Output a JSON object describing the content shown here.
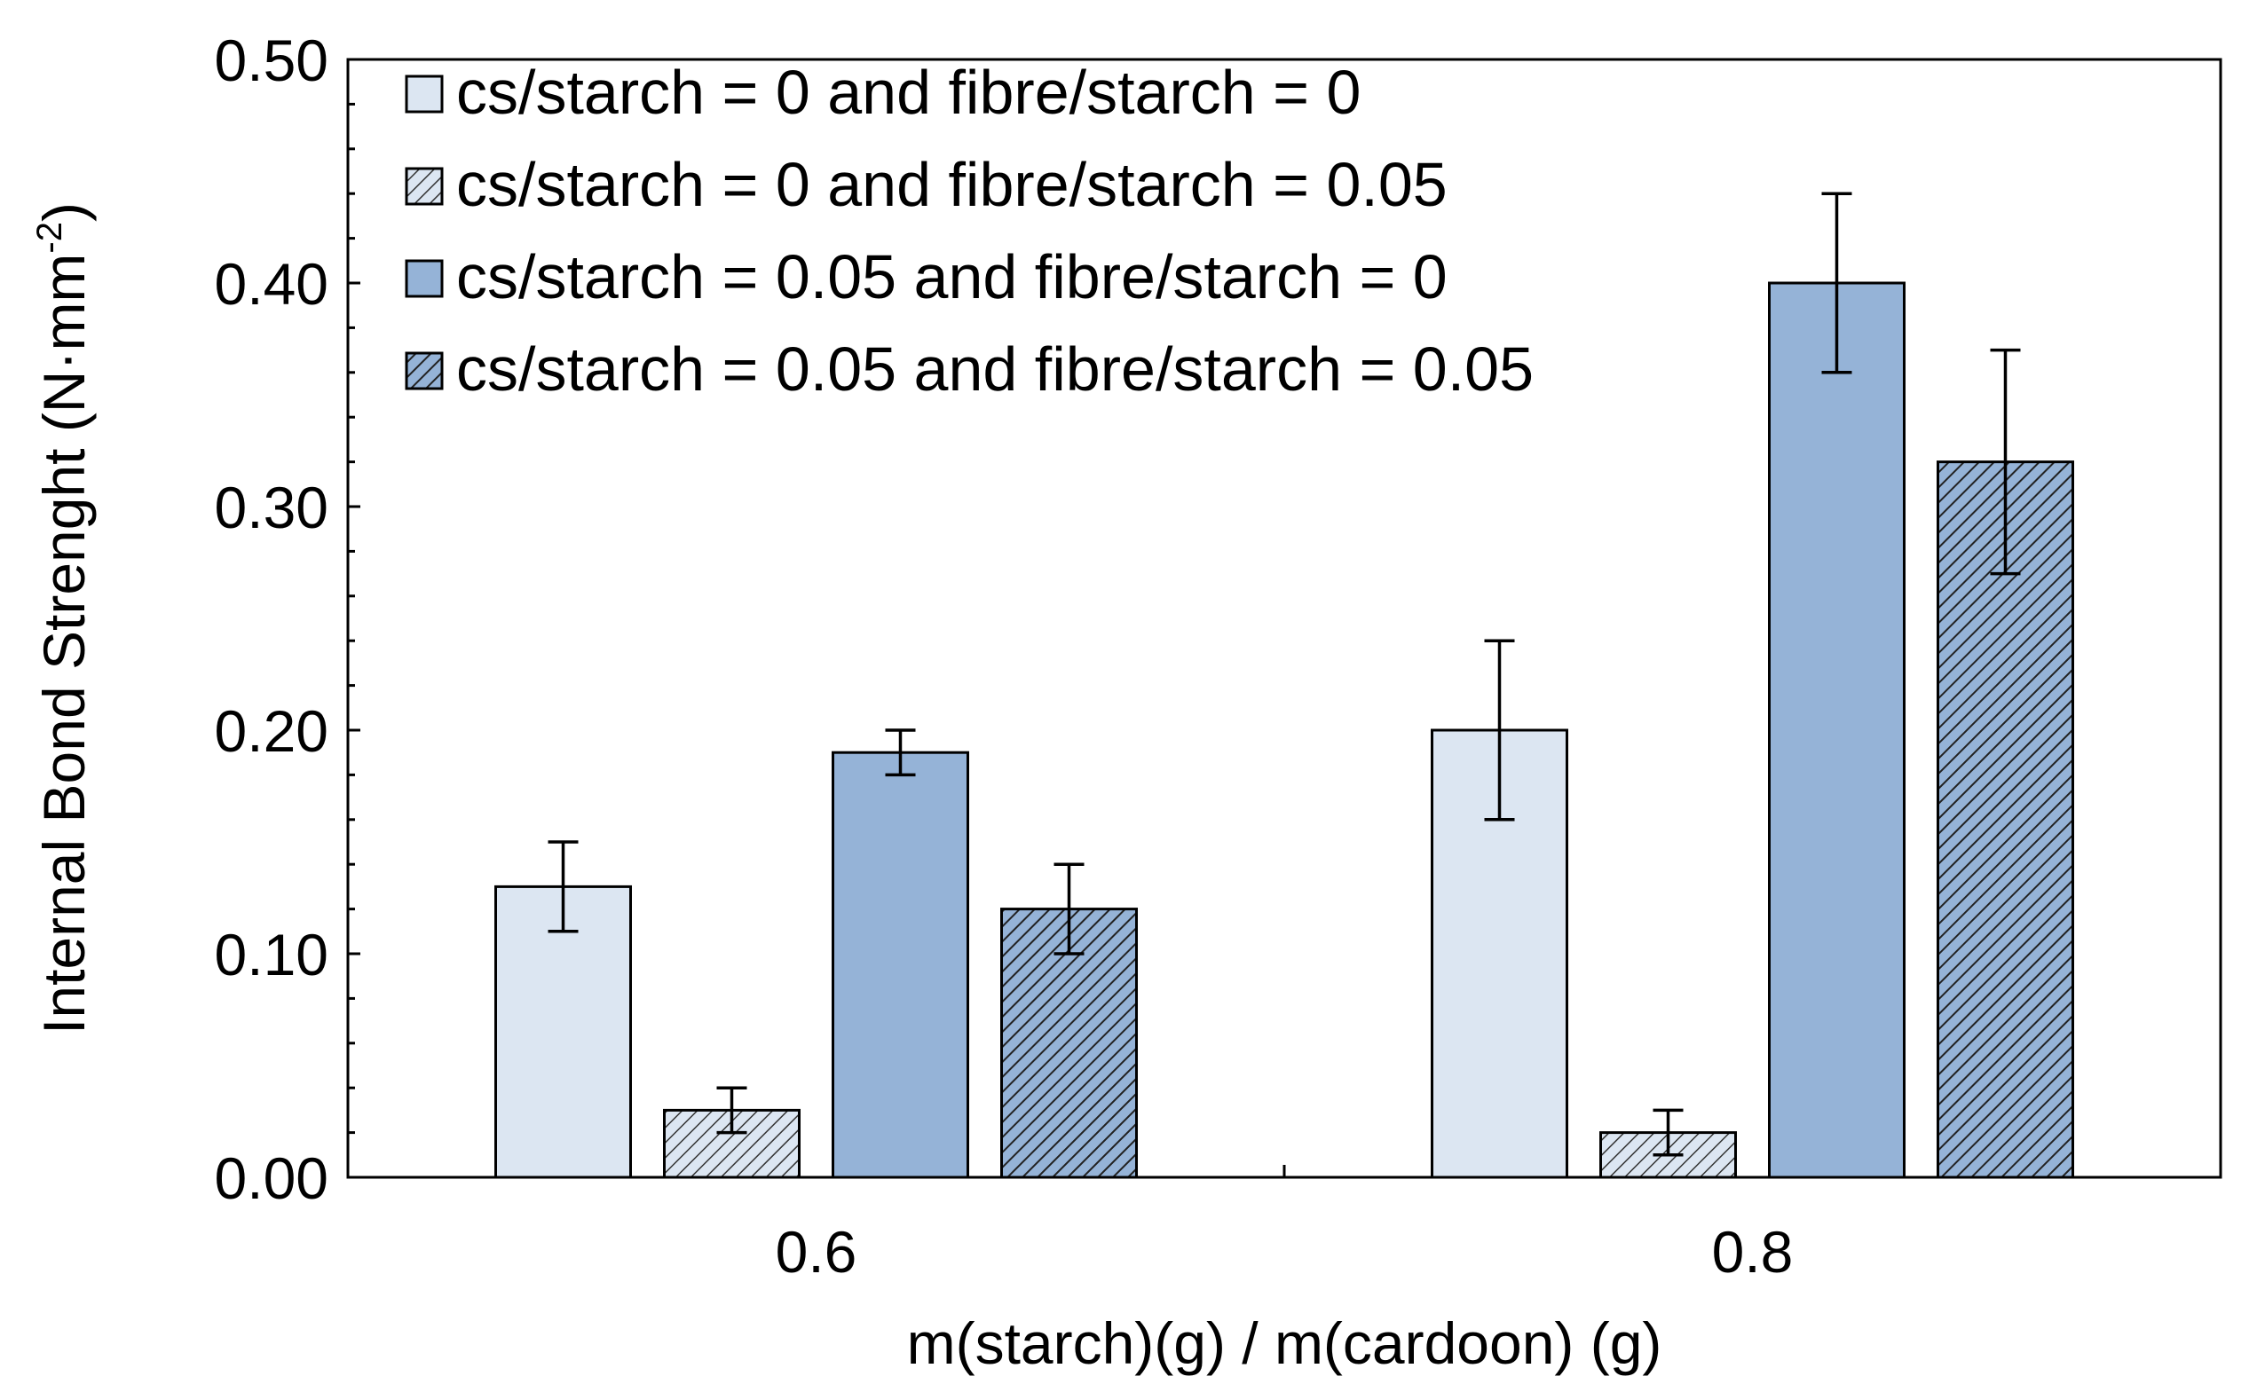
{
  "chart_data": {
    "type": "bar",
    "ylabel_main": "Internal Bond Strenght (N·mm",
    "ylabel_sup": "-2",
    "ylabel_close": ")",
    "xlabel": "m(starch)(g) / m(cardoon) (g)",
    "categories": [
      "0.6",
      "0.8"
    ],
    "ylim": [
      0,
      0.5
    ],
    "yticks": [
      "0.00",
      "0.10",
      "0.20",
      "0.30",
      "0.40",
      "0.50"
    ],
    "series": [
      {
        "name": "cs/starch = 0 and fibre/starch = 0",
        "values": [
          0.13,
          0.2
        ],
        "errors": [
          0.02,
          0.04
        ],
        "color": "#dce6f2",
        "pattern": "solid"
      },
      {
        "name": "cs/starch = 0 and fibre/starch = 0.05",
        "values": [
          0.03,
          0.02
        ],
        "errors": [
          0.01,
          0.01
        ],
        "color": "#dce6f2",
        "pattern": "hatch"
      },
      {
        "name": "cs/starch = 0.05 and fibre/starch = 0",
        "values": [
          0.19,
          0.4
        ],
        "errors": [
          0.01,
          0.04
        ],
        "color": "#95b3d7",
        "pattern": "solid"
      },
      {
        "name": "cs/starch = 0.05 and fibre/starch = 0.05",
        "values": [
          0.12,
          0.32
        ],
        "errors": [
          0.02,
          0.05
        ],
        "color": "#95b3d7",
        "pattern": "hatch"
      }
    ],
    "legend_position": "top-left",
    "grid": false
  }
}
